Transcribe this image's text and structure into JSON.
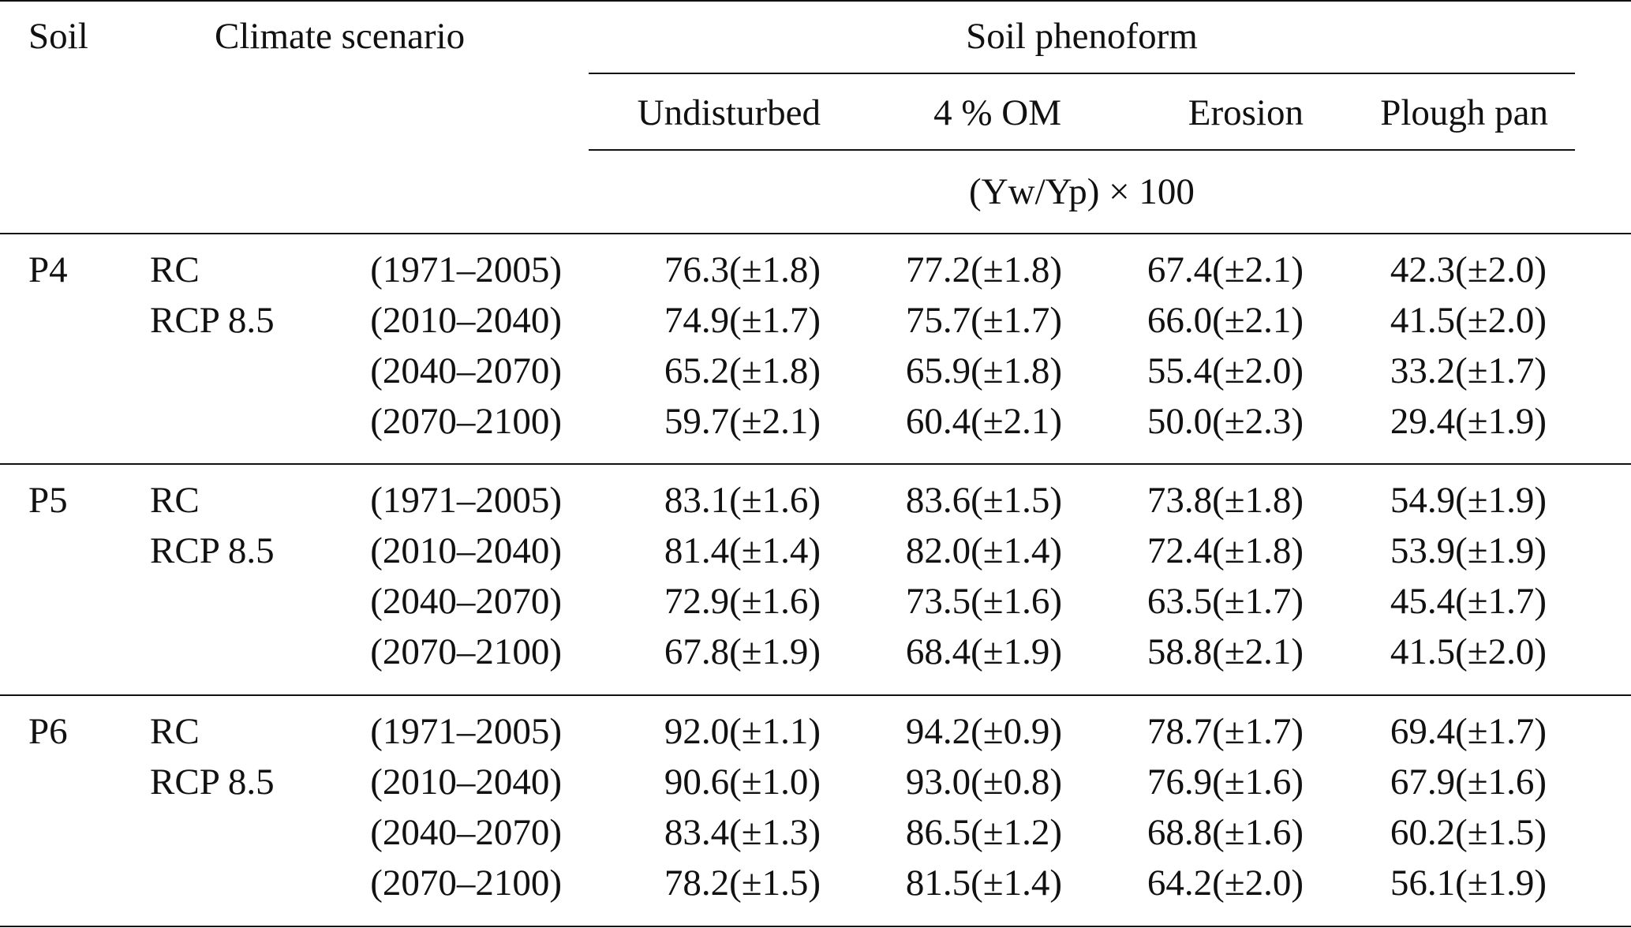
{
  "header": {
    "soil": "Soil",
    "climate_scenario": "Climate scenario",
    "soil_phenoform": "Soil phenoform",
    "columns": [
      "Undisturbed",
      "4 % OM",
      "Erosion",
      "Plough pan"
    ],
    "units": "(Yw/Yp) × 100"
  },
  "groups": [
    {
      "soil": "P4",
      "rows": [
        {
          "scenario": "RC",
          "period": "(1971–2005)",
          "values": [
            "76.3(±1.8)",
            "77.2(±1.8)",
            "67.4(±2.1)",
            "42.3(±2.0)"
          ]
        },
        {
          "scenario": "RCP 8.5",
          "period": "(2010–2040)",
          "values": [
            "74.9(±1.7)",
            "75.7(±1.7)",
            "66.0(±2.1)",
            "41.5(±2.0)"
          ]
        },
        {
          "scenario": "",
          "period": "(2040–2070)",
          "values": [
            "65.2(±1.8)",
            "65.9(±1.8)",
            "55.4(±2.0)",
            "33.2(±1.7)"
          ]
        },
        {
          "scenario": "",
          "period": "(2070–2100)",
          "values": [
            "59.7(±2.1)",
            "60.4(±2.1)",
            "50.0(±2.3)",
            "29.4(±1.9)"
          ]
        }
      ]
    },
    {
      "soil": "P5",
      "rows": [
        {
          "scenario": "RC",
          "period": "(1971–2005)",
          "values": [
            "83.1(±1.6)",
            "83.6(±1.5)",
            "73.8(±1.8)",
            "54.9(±1.9)"
          ]
        },
        {
          "scenario": "RCP 8.5",
          "period": "(2010–2040)",
          "values": [
            "81.4(±1.4)",
            "82.0(±1.4)",
            "72.4(±1.8)",
            "53.9(±1.9)"
          ]
        },
        {
          "scenario": "",
          "period": "(2040–2070)",
          "values": [
            "72.9(±1.6)",
            "73.5(±1.6)",
            "63.5(±1.7)",
            "45.4(±1.7)"
          ]
        },
        {
          "scenario": "",
          "period": "(2070–2100)",
          "values": [
            "67.8(±1.9)",
            "68.4(±1.9)",
            "58.8(±2.1)",
            "41.5(±2.0)"
          ]
        }
      ]
    },
    {
      "soil": "P6",
      "rows": [
        {
          "scenario": "RC",
          "period": "(1971–2005)",
          "values": [
            "92.0(±1.1)",
            "94.2(±0.9)",
            "78.7(±1.7)",
            "69.4(±1.7)"
          ]
        },
        {
          "scenario": "RCP 8.5",
          "period": "(2010–2040)",
          "values": [
            "90.6(±1.0)",
            "93.0(±0.8)",
            "76.9(±1.6)",
            "67.9(±1.6)"
          ]
        },
        {
          "scenario": "",
          "period": "(2040–2070)",
          "values": [
            "83.4(±1.3)",
            "86.5(±1.2)",
            "68.8(±1.6)",
            "60.2(±1.5)"
          ]
        },
        {
          "scenario": "",
          "period": "(2070–2100)",
          "values": [
            "78.2(±1.5)",
            "81.5(±1.4)",
            "64.2(±2.0)",
            "56.1(±1.9)"
          ]
        }
      ]
    }
  ]
}
